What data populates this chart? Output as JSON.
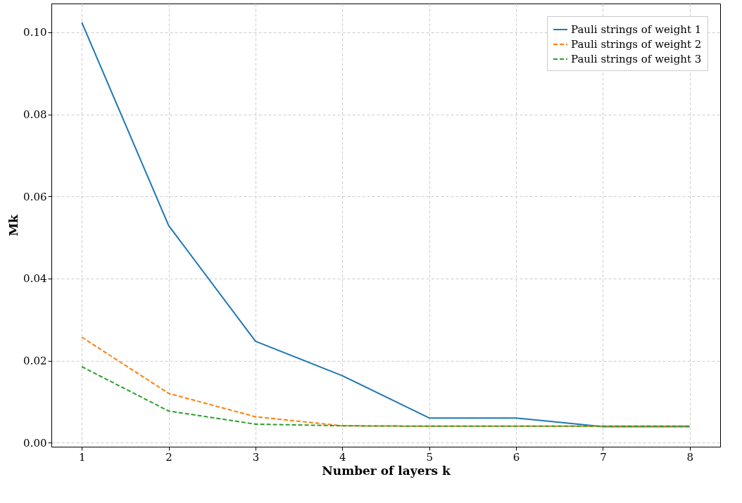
{
  "chart_data": {
    "type": "line",
    "xlabel": "Number of layers k",
    "ylabel": "Mk",
    "x": [
      1,
      2,
      3,
      4,
      5,
      6,
      7,
      8
    ],
    "series": [
      {
        "name": "Pauli strings of weight 1",
        "color": "#1f77b4",
        "line_style": "solid",
        "values": [
          0.1024,
          0.0529,
          0.0247,
          0.0163,
          0.006,
          0.006,
          0.0039,
          0.0039
        ]
      },
      {
        "name": "Pauli strings of weight 2",
        "color": "#ff7f0e",
        "line_style": "dashed",
        "values": [
          0.0257,
          0.012,
          0.0063,
          0.0041,
          0.004,
          0.004,
          0.004,
          0.004
        ]
      },
      {
        "name": "Pauli strings of weight 3",
        "color": "#2ca02c",
        "line_style": "dashed",
        "values": [
          0.0185,
          0.0077,
          0.0045,
          0.0041,
          0.004,
          0.004,
          0.004,
          0.004
        ]
      }
    ],
    "xlim": [
      0.65,
      8.35
    ],
    "xticks": [
      1,
      2,
      3,
      4,
      5,
      6,
      7,
      8
    ],
    "ylim": [
      -0.001,
      0.107
    ],
    "yticks": [
      {
        "value": 0,
        "label": "0.00"
      },
      0.02,
      0.04,
      0.06,
      0.08,
      {
        "value": 0.1,
        "label": "0.10"
      }
    ],
    "grid": true,
    "legend": "top right",
    "marker": "none"
  }
}
